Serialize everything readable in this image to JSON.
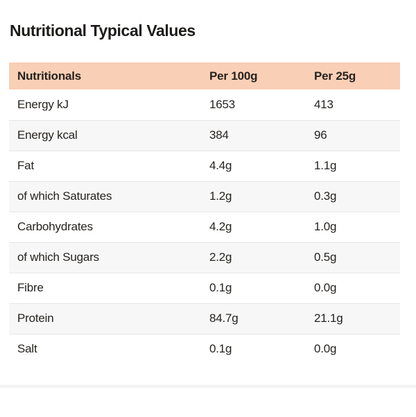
{
  "section": {
    "title": "Nutritional Typical Values"
  },
  "table": {
    "columns": [
      "Nutritionals",
      "Per 100g",
      "Per 25g"
    ],
    "rows": [
      {
        "label": "Energy kJ",
        "per100g": "1653",
        "per25g": "413"
      },
      {
        "label": "Energy kcal",
        "per100g": "384",
        "per25g": "96"
      },
      {
        "label": "Fat",
        "per100g": "4.4g",
        "per25g": "1.1g"
      },
      {
        "label": "of which Saturates",
        "per100g": "1.2g",
        "per25g": "0.3g"
      },
      {
        "label": "Carbohydrates",
        "per100g": "4.2g",
        "per25g": "1.0g"
      },
      {
        "label": "of which Sugars",
        "per100g": "2.2g",
        "per25g": "0.5g"
      },
      {
        "label": "Fibre",
        "per100g": "0.1g",
        "per25g": "0.0g"
      },
      {
        "label": "Protein",
        "per100g": "84.7g",
        "per25g": "21.1g"
      },
      {
        "label": "Salt",
        "per100g": "0.1g",
        "per25g": "0.0g"
      }
    ]
  },
  "theme": {
    "header_bg": "#f9cfb5",
    "zebra_bg": "#f7f7f7",
    "row_border": "#e6e6e6",
    "text": "#26231f"
  }
}
